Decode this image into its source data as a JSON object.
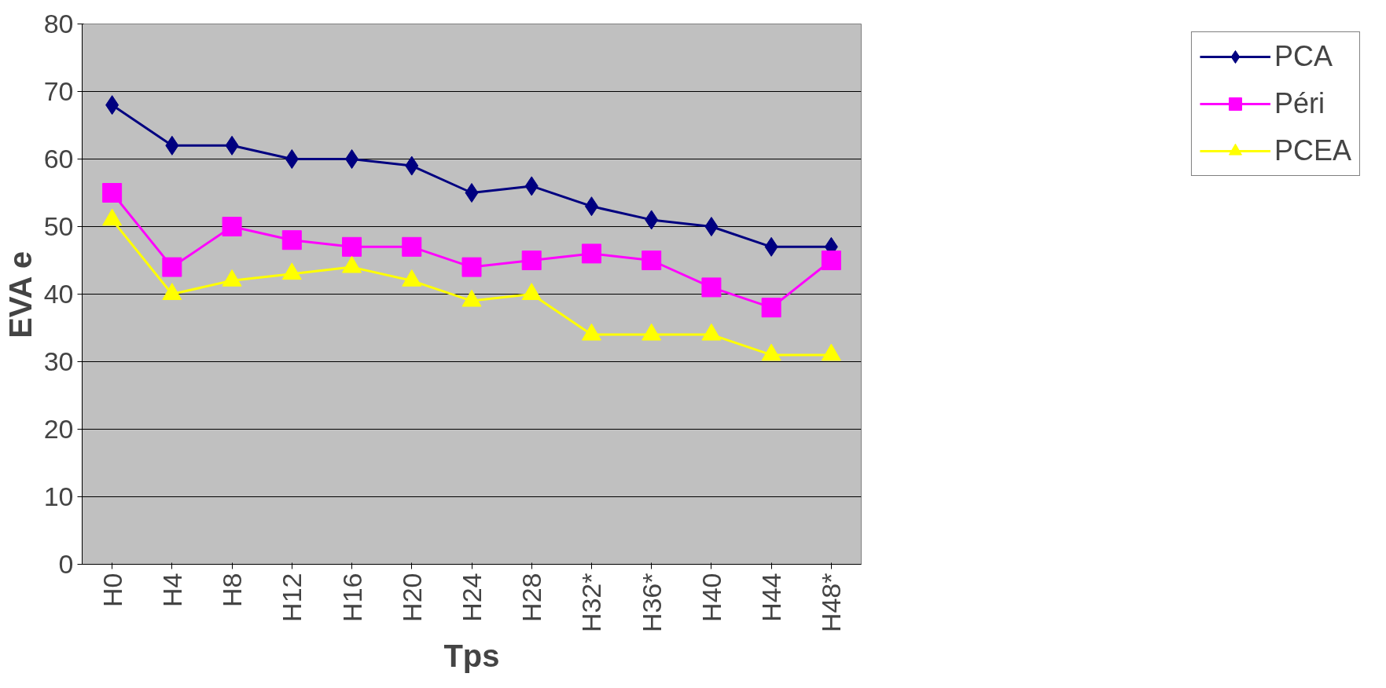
{
  "chart_data": {
    "type": "line",
    "xlabel": "Tps",
    "ylabel": "EVA e",
    "categories": [
      "H0",
      "H4",
      "H8",
      "H12",
      "H16",
      "H20",
      "H24",
      "H28",
      "H32*",
      "H36*",
      "H40",
      "H44",
      "H48*"
    ],
    "series": [
      {
        "name": "PCA",
        "color": "#000080",
        "marker": "diamond",
        "values": [
          68,
          62,
          62,
          60,
          60,
          59,
          55,
          56,
          53,
          51,
          50,
          47,
          47
        ]
      },
      {
        "name": "Péri",
        "color": "#ff00ff",
        "marker": "square",
        "values": [
          55,
          44,
          50,
          48,
          47,
          47,
          44,
          45,
          46,
          45,
          41,
          38,
          45
        ]
      },
      {
        "name": "PCEA",
        "color": "#ffff00",
        "marker": "triangle",
        "values": [
          51,
          40,
          42,
          43,
          44,
          42,
          39,
          40,
          34,
          34,
          34,
          31,
          31
        ]
      }
    ],
    "ylim": [
      0,
      80
    ],
    "yticks": [
      0,
      10,
      20,
      30,
      40,
      50,
      60,
      70,
      80
    ],
    "grid": "y",
    "legend": "right",
    "line_style": "solid"
  }
}
